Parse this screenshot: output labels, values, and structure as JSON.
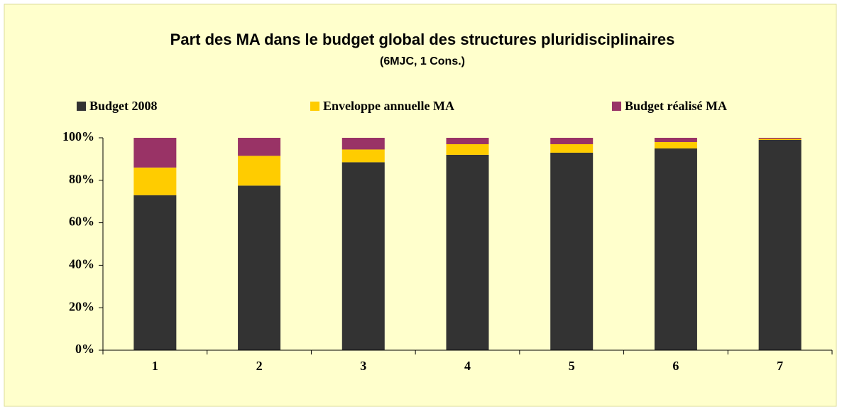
{
  "chart_data": {
    "type": "stacked_bar",
    "title": "Part des MA dans le budget global des structures pluridisciplinaires",
    "subtitle": "(6MJC, 1 Cons.)",
    "categories": [
      "1",
      "2",
      "3",
      "4",
      "5",
      "6",
      "7"
    ],
    "series": [
      {
        "name": "Budget 2008",
        "color": "#333333",
        "values": [
          73,
          77.5,
          88.5,
          92,
          93,
          95,
          99
        ]
      },
      {
        "name": "Enveloppe annuelle MA",
        "color": "#ffcc00",
        "values": [
          13,
          14,
          6,
          5,
          4,
          3,
          0.5
        ]
      },
      {
        "name": "Budget réalisé MA",
        "color": "#993366",
        "values": [
          14,
          8.5,
          5.5,
          3,
          3,
          2,
          0.5
        ]
      }
    ],
    "ylim": [
      0,
      100
    ],
    "yticks": [
      {
        "value": 0,
        "label": "0%"
      },
      {
        "value": 20,
        "label": "20%"
      },
      {
        "value": 40,
        "label": "40%"
      },
      {
        "value": 60,
        "label": "60%"
      },
      {
        "value": 80,
        "label": "80%"
      },
      {
        "value": 100,
        "label": "100%"
      }
    ],
    "legend": "top"
  }
}
